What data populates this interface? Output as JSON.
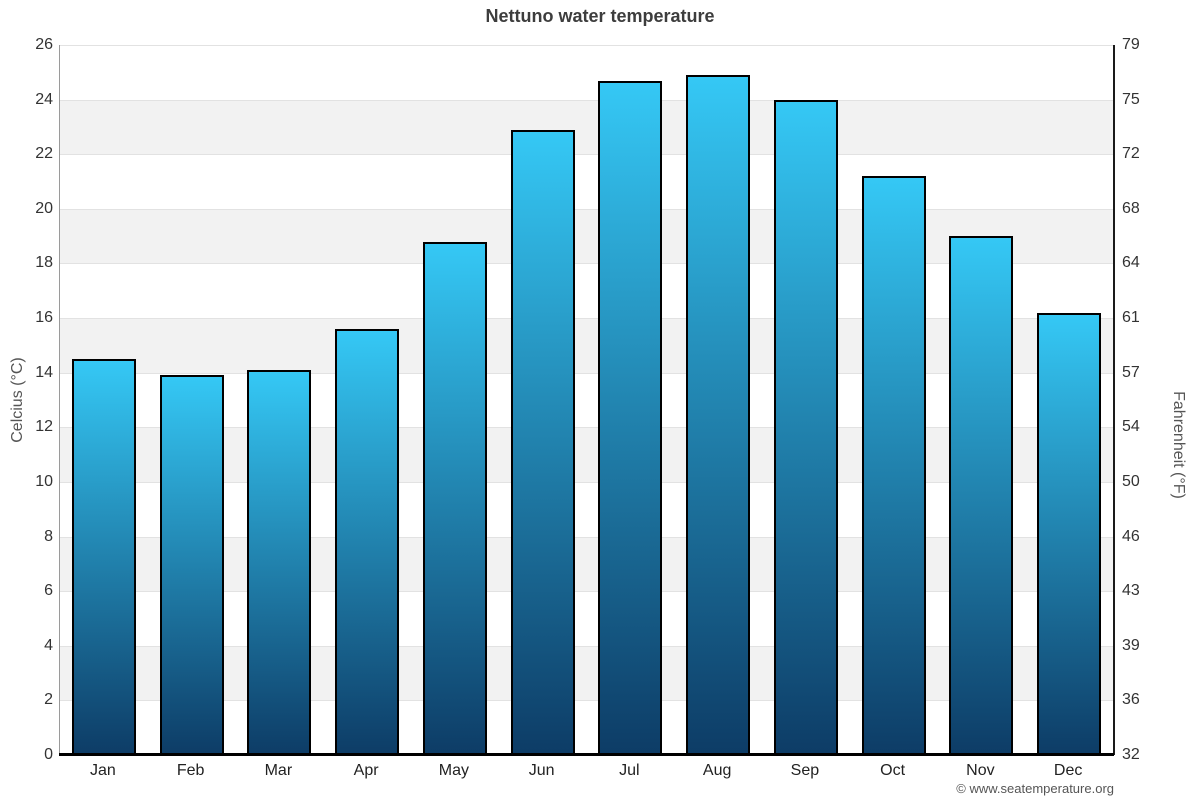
{
  "chart_data": {
    "type": "bar",
    "title": "Nettuno water temperature",
    "categories": [
      "Jan",
      "Feb",
      "Mar",
      "Apr",
      "May",
      "Jun",
      "Jul",
      "Aug",
      "Sep",
      "Oct",
      "Nov",
      "Dec"
    ],
    "values": [
      14.5,
      13.9,
      14.1,
      15.6,
      18.8,
      22.9,
      24.7,
      24.9,
      24.0,
      21.2,
      19.0,
      16.2
    ],
    "ylabel_left": "Celcius (°C)",
    "ylabel_right": "Fahrenheit (°F)",
    "ylim": [
      0,
      26
    ],
    "yticks_celsius": [
      0,
      2,
      4,
      6,
      8,
      10,
      12,
      14,
      16,
      18,
      20,
      22,
      24,
      26
    ],
    "yticks_fahrenheit": [
      32,
      36,
      39,
      43,
      46,
      50,
      54,
      57,
      61,
      64,
      68,
      72,
      75,
      79
    ],
    "legend": "none",
    "grid": "horizontal, alternating shaded bands every 2°C",
    "colors": {
      "bar_gradient_top": "#35c8f5",
      "bar_gradient_bottom": "#0d3c66",
      "bar_border": "#000000",
      "band_shaded": "#f2f2f2",
      "band_plain": "#ffffff",
      "gridline": "#e2e2e2",
      "title_text": "#3d3d3d"
    }
  },
  "watermark": "© www.seatemperature.org"
}
